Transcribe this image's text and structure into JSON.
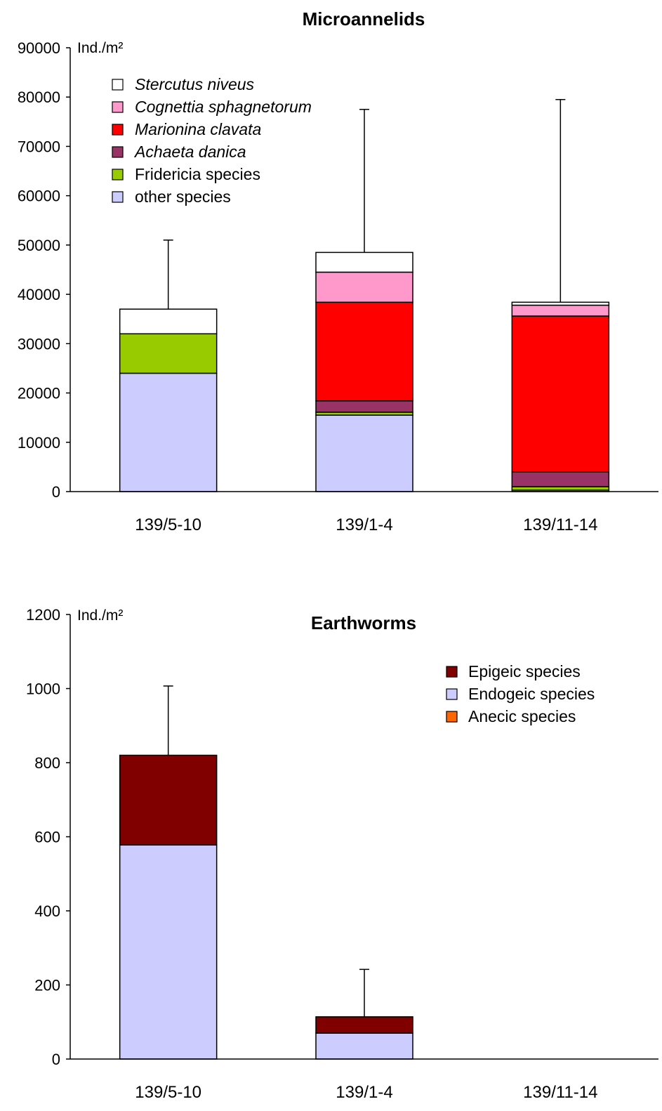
{
  "chart_data": [
    {
      "type": "bar",
      "stacked": true,
      "title": "Microannelids",
      "ylabel": "Ind./m²",
      "ylim": [
        0,
        90000
      ],
      "yticks": [
        "0",
        "10000",
        "20000",
        "30000",
        "40000",
        "50000",
        "60000",
        "70000",
        "80000",
        "90000"
      ],
      "categories": [
        "139/5-10",
        "139/1-4",
        "139/11-14"
      ],
      "legend_position": "top-left",
      "series": [
        {
          "name": "other species",
          "italic": false,
          "color": "#ccccff",
          "values": [
            24000,
            15500,
            300
          ]
        },
        {
          "name": "Fridericia species",
          "italic": false,
          "color": "#99cc00",
          "values": [
            8000,
            600,
            700
          ]
        },
        {
          "name": "Achaeta danica",
          "italic": true,
          "color": "#993366",
          "values": [
            0,
            2300,
            3000
          ]
        },
        {
          "name": "Marionina clavata",
          "italic": true,
          "color": "#ff0000",
          "values": [
            0,
            20000,
            31600
          ]
        },
        {
          "name": "Cognettia sphagnetorum",
          "italic": true,
          "color": "#ff99cc",
          "values": [
            0,
            6100,
            2200
          ]
        },
        {
          "name": "Stercutus niveus",
          "italic": true,
          "color": "#ffffff",
          "values": [
            5000,
            4000,
            600
          ]
        }
      ],
      "error_upper": [
        51000,
        77500,
        79500
      ]
    },
    {
      "type": "bar",
      "stacked": true,
      "title": "Earthworms",
      "ylabel": "Ind./m²",
      "ylim": [
        0,
        1200
      ],
      "yticks": [
        "0",
        "200",
        "400",
        "600",
        "800",
        "1000",
        "1200"
      ],
      "categories": [
        "139/5-10",
        "139/1-4",
        "139/11-14"
      ],
      "legend_position": "top-right",
      "series": [
        {
          "name": "Endogeic species",
          "italic": false,
          "color": "#ccccff",
          "values": [
            578,
            70,
            0
          ]
        },
        {
          "name": "Epigeic species",
          "italic": false,
          "color": "#800000",
          "values": [
            242,
            44,
            0
          ]
        },
        {
          "name": "Anecic species",
          "italic": false,
          "color": "#ff6600",
          "values": [
            0,
            0,
            0
          ]
        }
      ],
      "legend_order": [
        "Epigeic species",
        "Endogeic species",
        "Anecic species"
      ],
      "error_upper": [
        1007,
        242,
        null
      ]
    }
  ]
}
